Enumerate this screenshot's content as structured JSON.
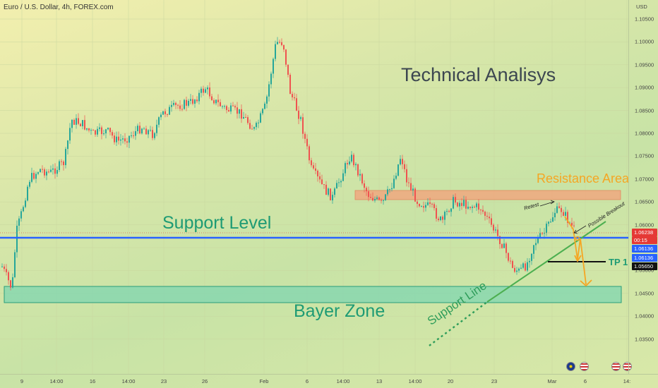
{
  "header": {
    "symbol_title": "Euro / U.S. Dollar, 4h, FOREX.com"
  },
  "price_axis": {
    "currency": "USD",
    "ticks": [
      "1.10500",
      "1.10000",
      "1.09500",
      "1.09000",
      "1.08500",
      "1.08000",
      "1.07500",
      "1.07000",
      "1.06500",
      "1.06000",
      "1.05500",
      "1.05000",
      "1.04500",
      "1.04000",
      "1.03500"
    ],
    "badges": {
      "last_price": "1.06238",
      "countdown": "00:15",
      "line_level_1": "1.06136",
      "line_level_2": "1.06136",
      "tp_level": "1.05650"
    }
  },
  "time_axis": {
    "ticks": [
      "9",
      "14:00",
      "16",
      "14:00",
      "23",
      "26",
      "Feb",
      "6",
      "14:00",
      "13",
      "14:00",
      "20",
      "23",
      "Mar",
      "6",
      "14:"
    ]
  },
  "annotations": {
    "headline": "Technical Analisys",
    "resistance": "Resistance Area",
    "support_level": "Support Level",
    "bayer_zone": "Bayer Zone",
    "support_line": "Support Line",
    "retest": "Retest",
    "possible_breakout": "Possible Breakout",
    "tp": "TP 1"
  },
  "colors": {
    "bull": "#26a69a",
    "bear": "#ef5350",
    "support_blue": "#2962ff",
    "resistance": "#f4a07a",
    "bayer_zone": "#7fd6b0",
    "orange": "#f5a623",
    "text_green": "#1e9b74"
  },
  "chart_data": {
    "type": "candlestick",
    "ylim": [
      1.0325,
      1.1075
    ],
    "levels": {
      "support_level": 1.06136,
      "tp_1": 1.0565,
      "resistance_area": [
        1.0688,
        1.0705
      ],
      "bayer_zone": [
        1.0486,
        1.0516
      ]
    }
  }
}
